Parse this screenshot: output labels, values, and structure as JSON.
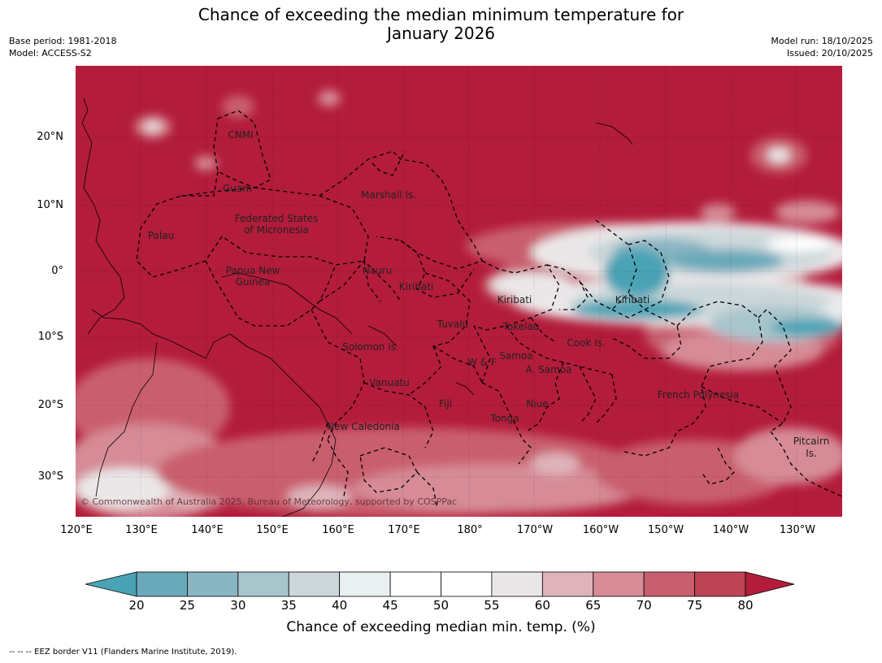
{
  "title": "Chance of exceeding the median minimum temperature for",
  "title_line2": "January 2026",
  "meta": {
    "base_period": "Base period: 1981-2018",
    "model": "Model: ACCESS-S2",
    "model_run": "Model run: 18/10/2025",
    "issued": "Issued: 20/10/2025"
  },
  "map": {
    "lat_labels": [
      "20°N",
      "10°N",
      "0°",
      "10°S",
      "20°S",
      "30°S"
    ],
    "lon_labels": [
      "120°E",
      "130°E",
      "140°E",
      "150°E",
      "160°E",
      "170°E",
      "180°",
      "170°W",
      "160°W",
      "150°W",
      "140°W",
      "130°W"
    ],
    "regions": [
      "CNMI",
      "Guam",
      "Marshall Is.",
      "Federated States",
      "of Micronesia",
      "Palau",
      "Papua New",
      "Guinea",
      "Nauru",
      "Kiribati",
      "Kiribati",
      "Kiribati",
      "Tuvalu",
      "Tokelau",
      "Solomon Is.",
      "Samoa",
      "W & F",
      "A. Samoa",
      "Cook Is.",
      "Vanuatu",
      "Fiji",
      "Niue",
      "Tonga",
      "French Polynesia",
      "New Caledonia",
      "Pitcairn",
      "Is."
    ],
    "copyright": "© Commonwealth of Australia 2025, Bureau of Meteorology, supported by COSPPac"
  },
  "colorbar": {
    "ticks": [
      "20",
      "25",
      "30",
      "35",
      "40",
      "45",
      "50",
      "55",
      "60",
      "65",
      "70",
      "75",
      "80"
    ],
    "colors": [
      "#6aa9ba",
      "#8ab5c2",
      "#a8c5cc",
      "#cbd7da",
      "#eaf0f1",
      "#ffffff",
      "#ffffff",
      "#ebe7e8",
      "#deb3ba",
      "#d68b96",
      "#c95f6e",
      "#bd4456"
    ],
    "under_color": "#4aa3b5",
    "over_color": "#b31c3b",
    "label": "Chance of exceeding median min. temp. (%)"
  },
  "footnote": "--  --  -- EEZ border V11 (Flanders Marine Institute, 2019)."
}
